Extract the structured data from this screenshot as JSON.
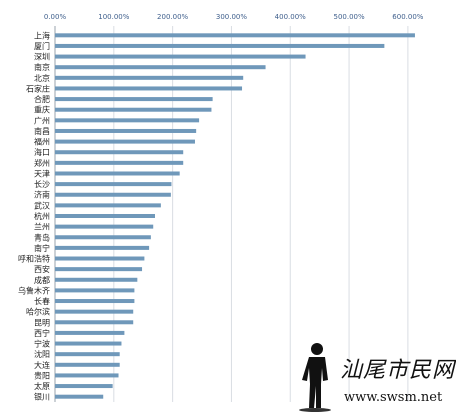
{
  "chart_data": {
    "type": "bar",
    "orientation": "horizontal",
    "title": "",
    "xlabel": "",
    "ylabel": "",
    "xlim": [
      0,
      650
    ],
    "x_tick_values": [
      0,
      100,
      200,
      300,
      400,
      500,
      600
    ],
    "x_tick_labels": [
      "0.00%",
      "100.00%",
      "200.00%",
      "300.00%",
      "400.00%",
      "500.00%",
      "600.00%"
    ],
    "grid": true,
    "bar_color": "#6f98ba",
    "categories": [
      "上海",
      "厦门",
      "深圳",
      "南京",
      "北京",
      "石家庄",
      "合肥",
      "重庆",
      "广州",
      "南昌",
      "福州",
      "海口",
      "郑州",
      "天津",
      "长沙",
      "济南",
      "武汉",
      "杭州",
      "兰州",
      "青岛",
      "南宁",
      "呼和浩特",
      "西安",
      "成都",
      "乌鲁木齐",
      "长春",
      "哈尔滨",
      "昆明",
      "西宁",
      "宁波",
      "沈阳",
      "大连",
      "贵阳",
      "太原",
      "银川"
    ],
    "values": [
      612,
      560,
      426,
      358,
      320,
      318,
      268,
      266,
      245,
      240,
      238,
      218,
      218,
      212,
      198,
      197,
      180,
      170,
      167,
      163,
      160,
      152,
      148,
      140,
      135,
      135,
      133,
      133,
      118,
      113,
      110,
      110,
      108,
      98,
      82
    ]
  },
  "watermark": {
    "text": "汕尾市民网",
    "url": "www.swsm.net"
  }
}
